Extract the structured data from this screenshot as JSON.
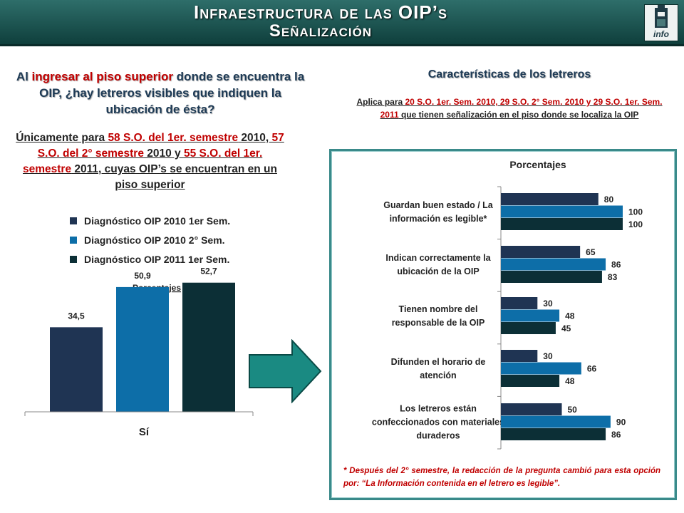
{
  "header": {
    "title_line1": "Infraestructura de las OIP’s",
    "title_line2": "Señalización",
    "logo_text": "info"
  },
  "left": {
    "question_parts": [
      "Al ",
      "ingresar al piso superior",
      " donde se encuentra la OIP, ¿hay letreros visibles que indiquen la ubicación de ésta?"
    ],
    "note_parts": [
      "Únicamente para ",
      "58 S.O. del 1er. semestre",
      " 2010, ",
      "57 S.O. del 2° semestre",
      " 2010 y ",
      "55 S.O. del 1er. semestre",
      " 2011, cuyas OIP’s se encuentran en un piso superior"
    ]
  },
  "legend": [
    {
      "label": "Diagnóstico OIP 2010 1er Sem.",
      "color": "#1f3453"
    },
    {
      "label": "Diagnóstico OIP 2010 2° Sem.",
      "color": "#0d6ea8"
    },
    {
      "label": "Diagnóstico OIP 2011 1er Sem.",
      "color": "#0c2f36"
    }
  ],
  "right": {
    "title": "Características de los letreros",
    "subtitle_parts": [
      "Aplica para ",
      "20 S.O. 1er. Sem. 2010, 29 S.O. 2° Sem. 2010  y 29 S.O. 1er. Sem. 2011",
      " que tienen señalización en el piso donde se localiza la OIP"
    ],
    "footnote_parts": [
      "* Después del 2° semestre, la redacción de la pregunta cambió para esta opción por: “La Información contenida en el letrero es legible”."
    ]
  },
  "chart_data": [
    {
      "type": "bar",
      "title": "Porcentajes",
      "categories": [
        "Sí"
      ],
      "series": [
        {
          "name": "Diagnóstico OIP 2010 1er Sem.",
          "values": [
            34.5
          ],
          "labels": [
            "34,5"
          ]
        },
        {
          "name": "Diagnóstico OIP 2010 2° Sem.",
          "values": [
            50.9
          ],
          "labels": [
            "50,9"
          ]
        },
        {
          "name": "Diagnóstico OIP 2011 1er Sem.",
          "values": [
            52.7
          ],
          "labels": [
            "52,7"
          ]
        }
      ],
      "ylim": [
        0,
        75
      ]
    },
    {
      "type": "bar",
      "orientation": "horizontal",
      "title": "Porcentajes",
      "categories": [
        [
          "Guardan buen estado / La",
          "información es legible*"
        ],
        [
          "Indican correctamente la",
          "ubicación de la OIP"
        ],
        [
          "Tienen nombre del",
          "responsable de la OIP"
        ],
        [
          "Difunden el horario de",
          "atención"
        ],
        [
          "Los letreros están",
          "confeccionados con materiales",
          "duraderos"
        ]
      ],
      "series": [
        {
          "name": "Diagnóstico OIP 2010 1er Sem.",
          "values": [
            80,
            65,
            30,
            30,
            50
          ]
        },
        {
          "name": "Diagnóstico OIP 2010 2° Sem.",
          "values": [
            100,
            86,
            48,
            66,
            90
          ]
        },
        {
          "name": "Diagnóstico OIP 2011 1er Sem.",
          "values": [
            100,
            83,
            45,
            48,
            86
          ]
        }
      ],
      "xlim": [
        0,
        100
      ]
    }
  ]
}
